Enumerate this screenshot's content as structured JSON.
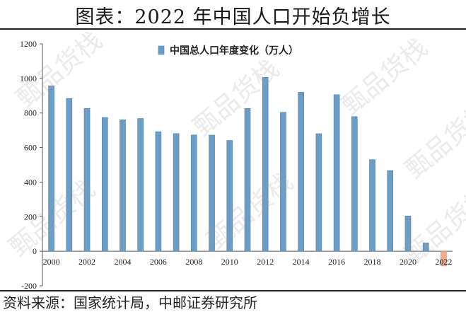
{
  "page": {
    "title": "图表：2022 年中国人口开始负增长",
    "source": "资料来源：国家统计局，中邮证券研究所"
  },
  "watermark": "甄品货栈",
  "chart_data": {
    "type": "bar",
    "title": "",
    "legend": "中国总人口年度变化（万人）",
    "legend_position": "top-center",
    "xlabel": "",
    "ylabel": "",
    "ylim": [
      -200,
      1200
    ],
    "yticks": [
      -200,
      0,
      200,
      400,
      600,
      800,
      1000,
      1200
    ],
    "grid": false,
    "categories": [
      "2000",
      "2001",
      "2002",
      "2003",
      "2004",
      "2005",
      "2006",
      "2007",
      "2008",
      "2009",
      "2010",
      "2011",
      "2012",
      "2013",
      "2014",
      "2015",
      "2016",
      "2017",
      "2018",
      "2019",
      "2020",
      "2021",
      "2022"
    ],
    "xtick_labels": [
      "2000",
      "2002",
      "2004",
      "2006",
      "2008",
      "2010",
      "2012",
      "2014",
      "2016",
      "2018",
      "2020",
      "2022"
    ],
    "series": [
      {
        "name": "中国总人口年度变化（万人）",
        "values": [
          957,
          884,
          826,
          774,
          761,
          768,
          692,
          681,
          673,
          672,
          641,
          826,
          1006,
          804,
          920,
          680,
          906,
          779,
          530,
          467,
          204,
          48,
          -85
        ]
      }
    ],
    "colors": {
      "positive": "#6c9dc6",
      "negative": "#f1ab8a",
      "axis": "#555555",
      "text": "#222222"
    }
  }
}
